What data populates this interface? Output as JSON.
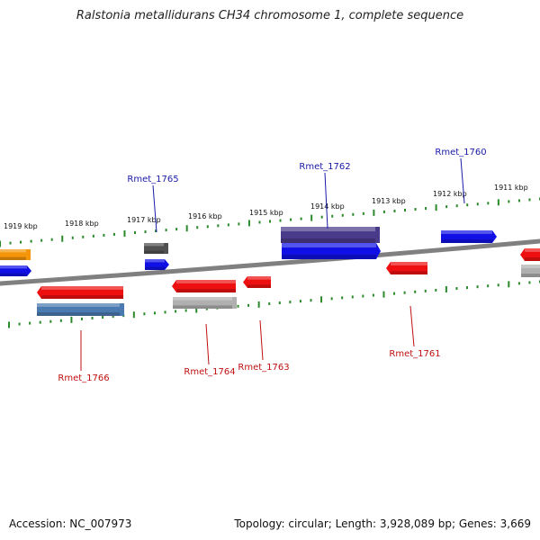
{
  "title": "Ralstonia metallidurans CH34 chromosome 1, complete sequence",
  "footer": {
    "accession": "Accession: NC_007973",
    "summary": "Topology: circular; Length: 3,928,089 bp; Genes: 3,669"
  },
  "colors": {
    "backbone": "#808080",
    "ticks": "#2a8a2a",
    "label_forward": "#1a1aa8",
    "label_reverse": "#c01010"
  },
  "kbp_labels": [
    "1919 kbp",
    "1918 kbp",
    "1917 kbp",
    "1916 kbp",
    "1915 kbp",
    "1914 kbp",
    "1913 kbp",
    "1912 kbp",
    "1911 kbp"
  ],
  "gene_labels": [
    {
      "name": "Rmet_1765",
      "strand": "forward"
    },
    {
      "name": "Rmet_1762",
      "strand": "forward"
    },
    {
      "name": "Rmet_1760",
      "strand": "forward"
    },
    {
      "name": "Rmet_1766",
      "strand": "reverse"
    },
    {
      "name": "Rmet_1764",
      "strand": "reverse"
    },
    {
      "name": "Rmet_1763",
      "strand": "reverse"
    },
    {
      "name": "Rmet_1761",
      "strand": "reverse"
    }
  ],
  "features": [
    {
      "id": "f-orange",
      "color": "#f5960a"
    },
    {
      "id": "f-blue-1",
      "color": "#1010e6"
    },
    {
      "id": "f-darkgray",
      "color": "#505050"
    },
    {
      "id": "f-blue-2",
      "color": "#1010e6"
    },
    {
      "id": "f-purple",
      "color": "#4a3a8a"
    },
    {
      "id": "f-blue-3",
      "color": "#1010e6"
    },
    {
      "id": "f-blue-4",
      "color": "#1010e6"
    },
    {
      "id": "f-red-1",
      "color": "#ee1010"
    },
    {
      "id": "f-steelblue",
      "color": "#4a7ab0"
    },
    {
      "id": "f-red-2",
      "color": "#ee1010"
    },
    {
      "id": "f-lightgray-1",
      "color": "#b0b0b0"
    },
    {
      "id": "f-red-3",
      "color": "#ee1010"
    },
    {
      "id": "f-red-4",
      "color": "#ee1010"
    },
    {
      "id": "f-red-5",
      "color": "#ee1010"
    },
    {
      "id": "f-lightgray-2",
      "color": "#b0b0b0"
    }
  ]
}
